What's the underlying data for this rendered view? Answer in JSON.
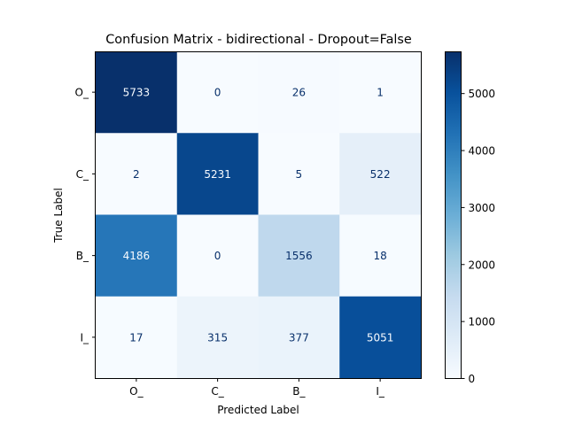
{
  "chart_data": {
    "type": "heatmap",
    "title": "Confusion Matrix - bidirectional - Dropout=False",
    "xlabel": "Predicted Label",
    "ylabel": "True Label",
    "x_categories": [
      "O_",
      "C_",
      "B_",
      "I_"
    ],
    "y_categories": [
      "O_",
      "C_",
      "B_",
      "I_"
    ],
    "matrix": [
      [
        5733,
        0,
        26,
        1
      ],
      [
        2,
        5231,
        5,
        522
      ],
      [
        4186,
        0,
        1556,
        18
      ],
      [
        17,
        315,
        377,
        5051
      ]
    ],
    "colormap": "Blues",
    "colorbar": {
      "min": 0,
      "max": 5733,
      "ticks": [
        0,
        1000,
        2000,
        3000,
        4000,
        5000
      ]
    },
    "colors": {
      "low": "#f7fbff",
      "high": "#08306b",
      "text_dark_bg": "#f7fbff",
      "text_light_bg": "#08306b"
    }
  }
}
